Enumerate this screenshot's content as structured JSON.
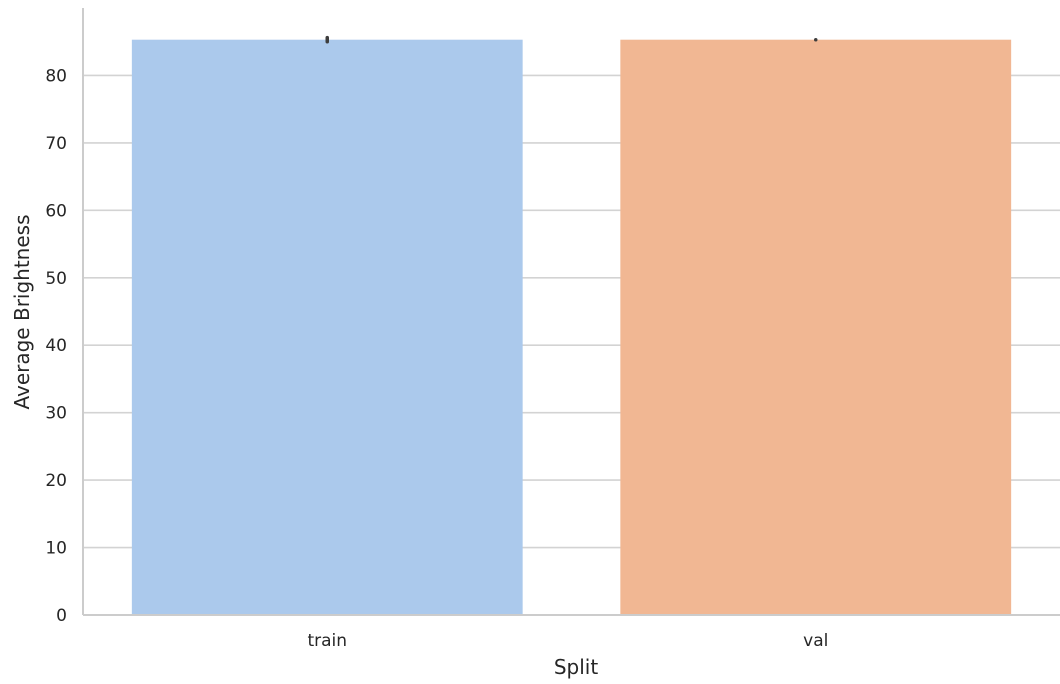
{
  "chart_data": {
    "type": "bar",
    "categories": [
      "train",
      "val"
    ],
    "values": [
      85.3,
      85.3
    ],
    "error_bars": [
      {
        "category": "train",
        "low": 85.0,
        "high": 85.6
      },
      {
        "category": "val",
        "low": 85.3,
        "high": 85.3
      }
    ],
    "xlabel": "Split",
    "ylabel": "Average Brightness",
    "ylim": [
      0,
      90
    ],
    "yticks": [
      0,
      10,
      20,
      30,
      40,
      50,
      60,
      70,
      80
    ],
    "grid": "horizontal",
    "colors": [
      "#abc9ec",
      "#f1b793"
    ]
  }
}
